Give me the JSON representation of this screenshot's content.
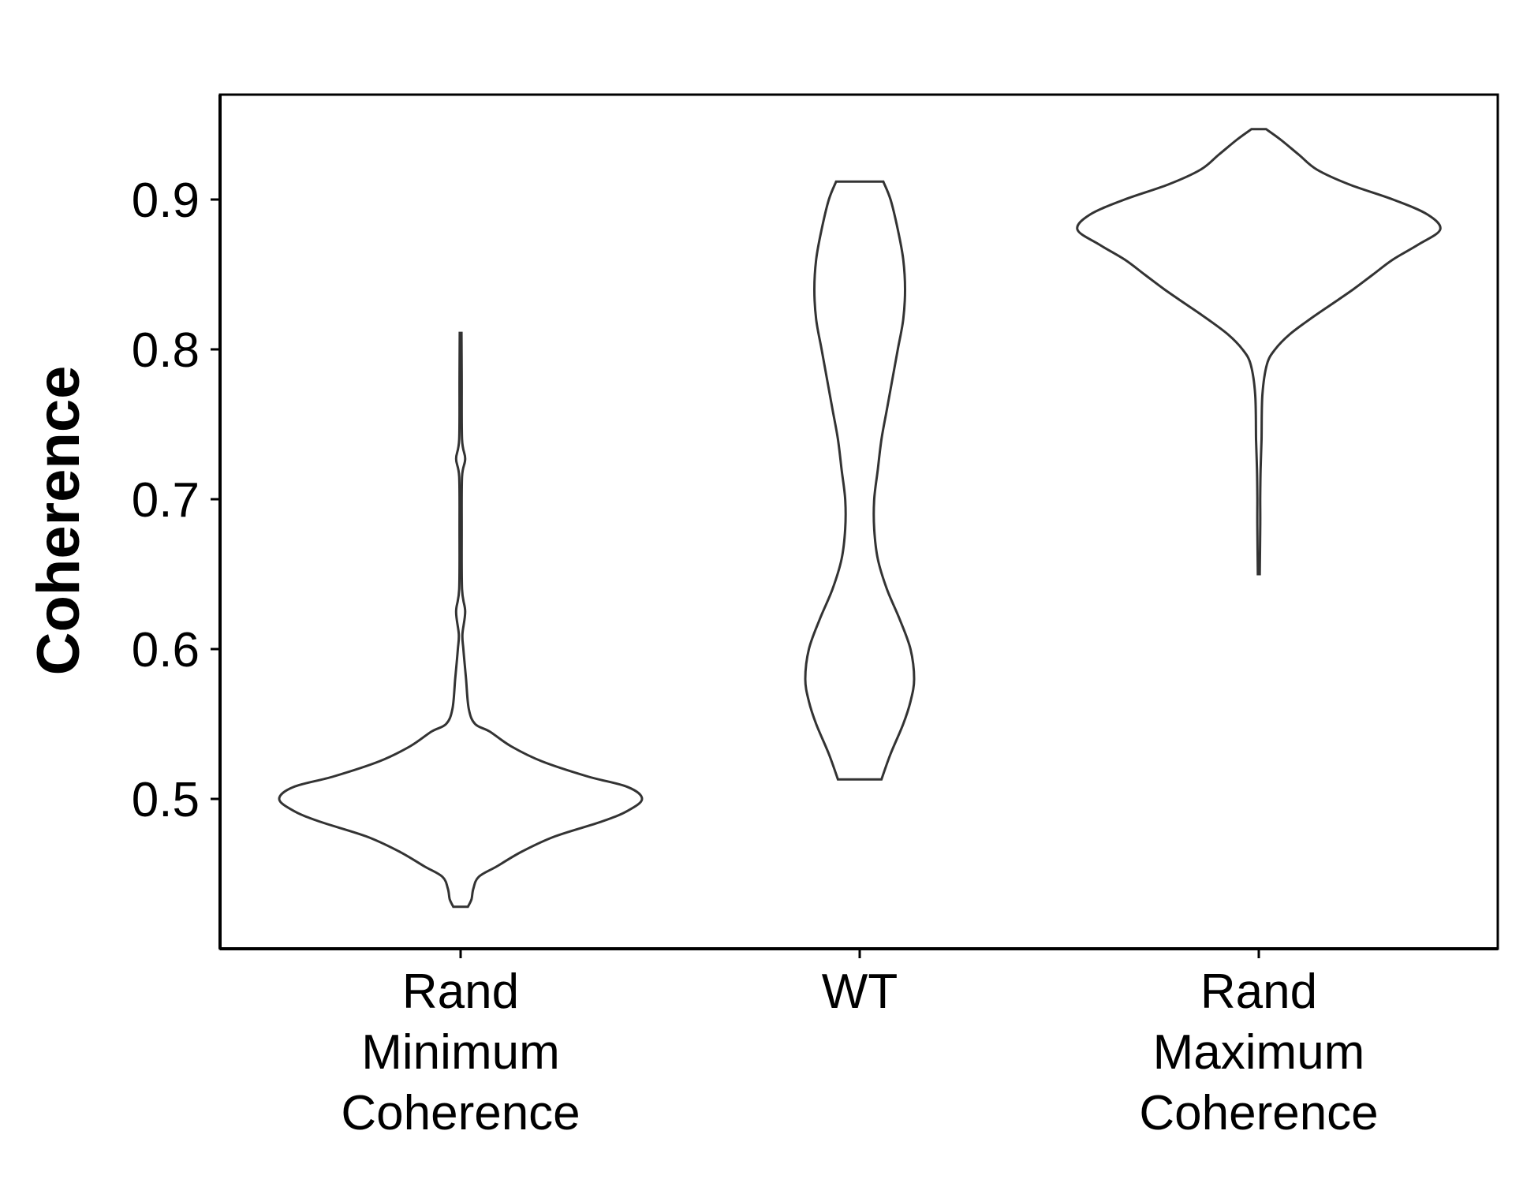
{
  "chart_data": {
    "type": "violin",
    "title": "",
    "xlabel": "",
    "ylabel": "Coherence",
    "ylim": [
      0.4,
      0.97
    ],
    "yticks": [
      0.5,
      0.6,
      0.7,
      0.8,
      0.9
    ],
    "ytick_labels": [
      "0.5",
      "0.6",
      "0.7",
      "0.8",
      "0.9"
    ],
    "grid": false,
    "categories": [
      {
        "label_lines": [
          "Rand",
          "Minimum",
          "Coherence"
        ]
      },
      {
        "label_lines": [
          "WT"
        ]
      },
      {
        "label_lines": [
          "Rand",
          "Maximum",
          "Coherence"
        ]
      }
    ],
    "series": [
      {
        "category_index": 0,
        "profile": [
          [
            0.428,
            0.04
          ],
          [
            0.433,
            0.06
          ],
          [
            0.44,
            0.07
          ],
          [
            0.448,
            0.1
          ],
          [
            0.455,
            0.2
          ],
          [
            0.465,
            0.34
          ],
          [
            0.475,
            0.52
          ],
          [
            0.485,
            0.78
          ],
          [
            0.492,
            0.92
          ],
          [
            0.5,
            1.0
          ],
          [
            0.508,
            0.92
          ],
          [
            0.515,
            0.7
          ],
          [
            0.525,
            0.45
          ],
          [
            0.535,
            0.28
          ],
          [
            0.545,
            0.16
          ],
          [
            0.55,
            0.08
          ],
          [
            0.56,
            0.045
          ],
          [
            0.58,
            0.03
          ],
          [
            0.6,
            0.015
          ],
          [
            0.61,
            0.01
          ],
          [
            0.625,
            0.025
          ],
          [
            0.64,
            0.008
          ],
          [
            0.68,
            0.006
          ],
          [
            0.715,
            0.008
          ],
          [
            0.727,
            0.025
          ],
          [
            0.74,
            0.008
          ],
          [
            0.78,
            0.006
          ],
          [
            0.811,
            0.005
          ]
        ]
      },
      {
        "category_index": 1,
        "profile": [
          [
            0.513,
            0.12
          ],
          [
            0.53,
            0.17
          ],
          [
            0.55,
            0.24
          ],
          [
            0.565,
            0.28
          ],
          [
            0.58,
            0.3
          ],
          [
            0.6,
            0.28
          ],
          [
            0.62,
            0.22
          ],
          [
            0.64,
            0.15
          ],
          [
            0.66,
            0.1
          ],
          [
            0.68,
            0.08
          ],
          [
            0.7,
            0.08
          ],
          [
            0.72,
            0.1
          ],
          [
            0.74,
            0.12
          ],
          [
            0.76,
            0.15
          ],
          [
            0.78,
            0.18
          ],
          [
            0.8,
            0.21
          ],
          [
            0.82,
            0.24
          ],
          [
            0.84,
            0.25
          ],
          [
            0.86,
            0.24
          ],
          [
            0.88,
            0.21
          ],
          [
            0.9,
            0.17
          ],
          [
            0.912,
            0.13
          ]
        ]
      },
      {
        "category_index": 2,
        "profile": [
          [
            0.65,
            0.005
          ],
          [
            0.68,
            0.008
          ],
          [
            0.7,
            0.008
          ],
          [
            0.72,
            0.01
          ],
          [
            0.74,
            0.015
          ],
          [
            0.77,
            0.02
          ],
          [
            0.79,
            0.045
          ],
          [
            0.8,
            0.09
          ],
          [
            0.81,
            0.17
          ],
          [
            0.82,
            0.28
          ],
          [
            0.83,
            0.4
          ],
          [
            0.84,
            0.52
          ],
          [
            0.85,
            0.63
          ],
          [
            0.86,
            0.74
          ],
          [
            0.87,
            0.88
          ],
          [
            0.88,
            1.0
          ],
          [
            0.89,
            0.93
          ],
          [
            0.9,
            0.74
          ],
          [
            0.91,
            0.5
          ],
          [
            0.92,
            0.32
          ],
          [
            0.93,
            0.22
          ],
          [
            0.94,
            0.12
          ],
          [
            0.947,
            0.04
          ]
        ]
      }
    ]
  }
}
